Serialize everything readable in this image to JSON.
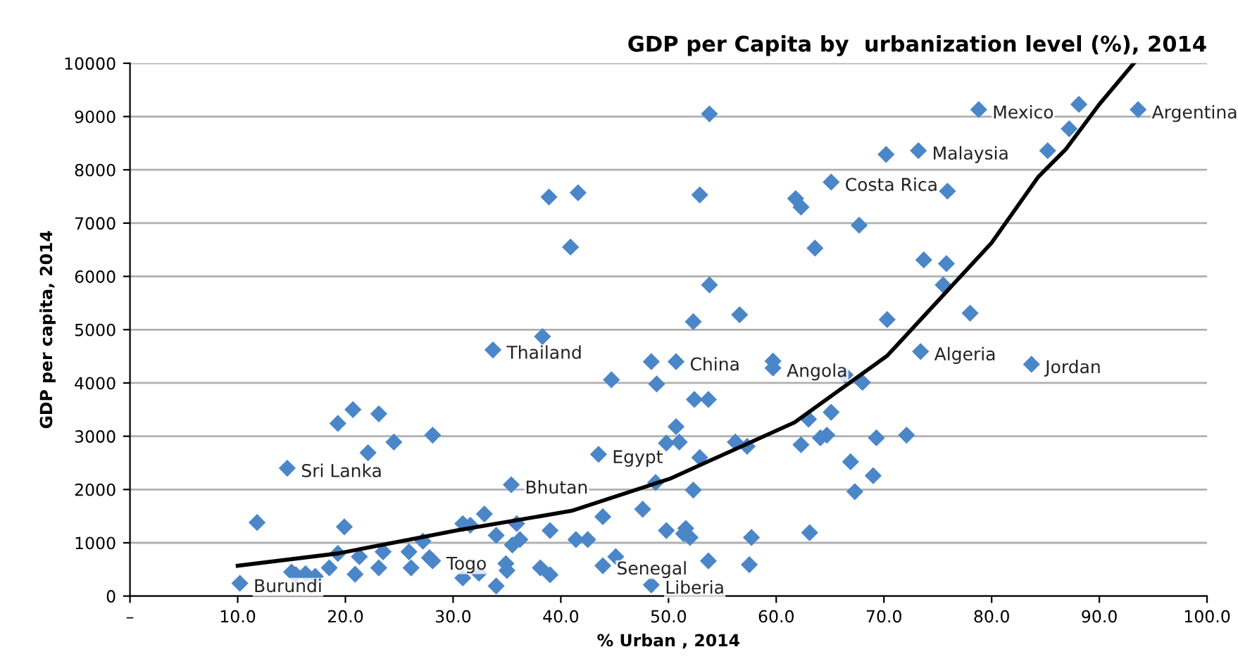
{
  "chart_data": {
    "type": "scatter",
    "title": "GDP per Capita by  urbanization level (%), 2014",
    "xlabel": "% Urban , 2014",
    "ylabel": "GDP per capita, 2014",
    "xlim": [
      0,
      100
    ],
    "xticks": [
      {
        "value": 0,
        "label": "–"
      },
      {
        "value": 10,
        "label": "10.0"
      },
      {
        "value": 20,
        "label": "20.0"
      },
      {
        "value": 30,
        "label": "30.0"
      },
      {
        "value": 40,
        "label": "40.0"
      },
      {
        "value": 50,
        "label": "50.0"
      },
      {
        "value": 60,
        "label": "60.0"
      },
      {
        "value": 70,
        "label": "70.0"
      },
      {
        "value": 80,
        "label": "80.0"
      },
      {
        "value": 90,
        "label": "90.0"
      },
      {
        "value": 100,
        "label": "100.0"
      }
    ],
    "ylim": [
      0,
      10000
    ],
    "yticks": [
      0,
      1000,
      2000,
      3000,
      4000,
      5000,
      6000,
      7000,
      8000,
      9000,
      10000
    ],
    "grid": "y",
    "marker": "diamond",
    "series": [
      {
        "color": "#4a86c8",
        "x": [
          10.2,
          11.8,
          14.6,
          15.0,
          15.4,
          16.3,
          17.2,
          18.5,
          19.3,
          20.7,
          22.1,
          23.1,
          24.5,
          28.1,
          19.9,
          19.3,
          20.9,
          21.3,
          23.1,
          23.5,
          26.1,
          25.9,
          27.2,
          27.8,
          28.1,
          30.9,
          31.6,
          32.9,
          34.0,
          32.4,
          30.9,
          34.0,
          34.9,
          35.0,
          35.5,
          36.2,
          35.9,
          35.4,
          38.1,
          39.0,
          39.0,
          33.7,
          38.3,
          38.9,
          40.9,
          41.6,
          53.8,
          52.9,
          53.8,
          52.3,
          56.6,
          48.4,
          50.7,
          59.7,
          59.7,
          44.7,
          48.9,
          52.4,
          53.7,
          65.1,
          63.0,
          66.4,
          68.0,
          50.7,
          49.8,
          51.0,
          56.2,
          57.3,
          62.3,
          64.1,
          64.7,
          69.3,
          72.1,
          43.5,
          52.9,
          48.8,
          66.9,
          69.0,
          67.3,
          52.3,
          47.6,
          43.9,
          41.4,
          42.5,
          49.8,
          51.6,
          52.0,
          51.4,
          57.7,
          63.1,
          45.1,
          43.9,
          53.7,
          57.5,
          48.4,
          70.2,
          65.1,
          61.8,
          62.3,
          63.6,
          67.7,
          70.3,
          78.8,
          88.1,
          93.6,
          87.2,
          85.2,
          73.2,
          75.9,
          73.7,
          75.8,
          75.5,
          78.0,
          73.4,
          83.7
        ],
        "values": [
          240,
          1380,
          2400,
          450,
          400,
          420,
          370,
          530,
          3240,
          3500,
          2690,
          3420,
          2890,
          3020,
          1300,
          800,
          410,
          740,
          530,
          830,
          530,
          830,
          1030,
          720,
          660,
          1360,
          1330,
          1540,
          1140,
          430,
          340,
          190,
          610,
          480,
          960,
          1060,
          1360,
          2090,
          530,
          400,
          1230,
          4620,
          4870,
          7490,
          6550,
          7570,
          9050,
          7530,
          5840,
          5150,
          5280,
          4400,
          4400,
          4410,
          4280,
          4060,
          3980,
          3690,
          3690,
          3450,
          3320,
          4150,
          4010,
          3180,
          2870,
          2890,
          2890,
          2810,
          2840,
          2970,
          3020,
          2970,
          3020,
          2660,
          2600,
          2130,
          2520,
          2260,
          1960,
          1990,
          1630,
          1490,
          1060,
          1060,
          1230,
          1270,
          1100,
          1170,
          1100,
          1190,
          740,
          570,
          660,
          590,
          210,
          8290,
          7770,
          7460,
          7300,
          6530,
          6960,
          5190,
          9130,
          9230,
          9130,
          8770,
          8360,
          8360,
          7600,
          6310,
          6240,
          5840,
          5310,
          4590,
          4350
        ]
      },
      {
        "type": "line",
        "color": "#000000",
        "marker": "none",
        "x": [
          10,
          19.3,
          30.3,
          41,
          50.1,
          61.7,
          70.3,
          80,
          84.3,
          86.9,
          90,
          93.2
        ],
        "values": [
          570,
          800,
          1230,
          1600,
          2200,
          3260,
          4510,
          6630,
          7860,
          8390,
          9230,
          10000
        ]
      }
    ],
    "annotations": [
      {
        "text": "Argentina",
        "x": 93.6,
        "y": 9130
      },
      {
        "text": "Mexico",
        "x": 78.8,
        "y": 9130
      },
      {
        "text": "Malaysia",
        "x": 73.2,
        "y": 8360
      },
      {
        "text": "Costa Rica",
        "x": 65.1,
        "y": 7770
      },
      {
        "text": "Algeria",
        "x": 73.4,
        "y": 4590
      },
      {
        "text": "Jordan",
        "x": 83.7,
        "y": 4350
      },
      {
        "text": "Angola",
        "x": 59.7,
        "y": 4280
      },
      {
        "text": "China",
        "x": 50.7,
        "y": 4400
      },
      {
        "text": "Thailand",
        "x": 33.7,
        "y": 4620
      },
      {
        "text": "Sri Lanka",
        "x": 14.6,
        "y": 2400
      },
      {
        "text": "Egypt",
        "x": 43.5,
        "y": 2660
      },
      {
        "text": "Bhutan",
        "x": 35.4,
        "y": 2090
      },
      {
        "text": "Togo",
        "x": 28.1,
        "y": 660
      },
      {
        "text": "Burundi",
        "x": 10.2,
        "y": 240
      },
      {
        "text": "Liberia",
        "x": 48.4,
        "y": 210
      },
      {
        "text": "Senegal",
        "x": 43.9,
        "y": 570
      }
    ]
  }
}
